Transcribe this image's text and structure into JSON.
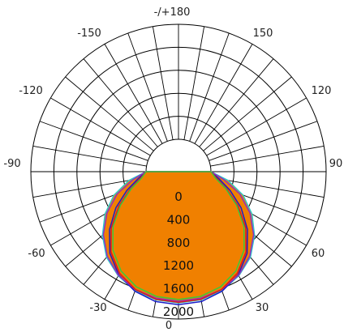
{
  "chart_data": {
    "type": "polar",
    "title": "",
    "r_max": 2000,
    "r_ticks": [
      0,
      400,
      800,
      1200,
      1600,
      2000
    ],
    "r_tick_labels": [
      "0",
      "400",
      "800",
      "1200",
      "1600",
      "2000"
    ],
    "grid_circle_values": [
      0,
      400,
      800,
      1200,
      1600,
      2000
    ],
    "spoke_step_deg": 10,
    "angle_labels": [
      {
        "deg": 180,
        "text": "-/+180"
      },
      {
        "deg": -150,
        "text": "-150"
      },
      {
        "deg": 150,
        "text": "150"
      },
      {
        "deg": -120,
        "text": "-120"
      },
      {
        "deg": 120,
        "text": "120"
      },
      {
        "deg": -90,
        "text": "-90"
      },
      {
        "deg": 90,
        "text": "90"
      },
      {
        "deg": -60,
        "text": "-60"
      },
      {
        "deg": 60,
        "text": "60"
      },
      {
        "deg": -30,
        "text": "-30"
      },
      {
        "deg": 30,
        "text": "30"
      },
      {
        "deg": 0,
        "text": "0"
      }
    ],
    "series": [
      {
        "color": "#f08000",
        "fill": "#f08000",
        "filled": true,
        "points": [
          [
            -90,
            0
          ],
          [
            -80,
            300
          ],
          [
            -70,
            620
          ],
          [
            -60,
            900
          ],
          [
            -50,
            1150
          ],
          [
            -40,
            1370
          ],
          [
            -30,
            1520
          ],
          [
            -20,
            1630
          ],
          [
            -10,
            1690
          ],
          [
            0,
            1710
          ],
          [
            10,
            1690
          ],
          [
            20,
            1630
          ],
          [
            30,
            1520
          ],
          [
            40,
            1370
          ],
          [
            50,
            1150
          ],
          [
            60,
            900
          ],
          [
            70,
            620
          ],
          [
            80,
            300
          ],
          [
            90,
            0
          ]
        ]
      },
      {
        "color": "#2ec8c8",
        "filled": false,
        "points": [
          [
            -90,
            0
          ],
          [
            -80,
            310
          ],
          [
            -70,
            630
          ],
          [
            -60,
            910
          ],
          [
            -50,
            1160
          ],
          [
            -40,
            1380
          ],
          [
            -30,
            1530
          ],
          [
            -20,
            1640
          ],
          [
            -10,
            1700
          ],
          [
            0,
            1720
          ],
          [
            10,
            1700
          ],
          [
            20,
            1640
          ],
          [
            30,
            1530
          ],
          [
            40,
            1380
          ],
          [
            50,
            1160
          ],
          [
            60,
            910
          ],
          [
            70,
            630
          ],
          [
            80,
            310
          ],
          [
            90,
            0
          ]
        ]
      },
      {
        "color": "#1c1cc8",
        "filled": false,
        "points": [
          [
            -90,
            0
          ],
          [
            -80,
            150
          ],
          [
            -70,
            390
          ],
          [
            -60,
            690
          ],
          [
            -50,
            1000
          ],
          [
            -40,
            1290
          ],
          [
            -30,
            1510
          ],
          [
            -20,
            1650
          ],
          [
            -10,
            1730
          ],
          [
            0,
            1750
          ],
          [
            10,
            1730
          ],
          [
            20,
            1650
          ],
          [
            30,
            1510
          ],
          [
            40,
            1290
          ],
          [
            50,
            1000
          ],
          [
            60,
            690
          ],
          [
            70,
            390
          ],
          [
            80,
            150
          ],
          [
            90,
            0
          ]
        ]
      },
      {
        "color": "#9030c0",
        "filled": false,
        "points": [
          [
            -90,
            0
          ],
          [
            -80,
            240
          ],
          [
            -70,
            570
          ],
          [
            -60,
            870
          ],
          [
            -50,
            1140
          ],
          [
            -40,
            1360
          ],
          [
            -30,
            1520
          ],
          [
            -20,
            1620
          ],
          [
            -10,
            1670
          ],
          [
            0,
            1690
          ],
          [
            10,
            1670
          ],
          [
            20,
            1620
          ],
          [
            30,
            1520
          ],
          [
            40,
            1360
          ],
          [
            50,
            1140
          ],
          [
            60,
            870
          ],
          [
            70,
            570
          ],
          [
            80,
            240
          ],
          [
            90,
            0
          ]
        ]
      },
      {
        "color": "#e01818",
        "filled": false,
        "points": [
          [
            -90,
            0
          ],
          [
            -80,
            110
          ],
          [
            -70,
            330
          ],
          [
            -60,
            630
          ],
          [
            -50,
            960
          ],
          [
            -40,
            1260
          ],
          [
            -30,
            1480
          ],
          [
            -20,
            1620
          ],
          [
            -10,
            1690
          ],
          [
            0,
            1710
          ],
          [
            10,
            1690
          ],
          [
            20,
            1620
          ],
          [
            30,
            1480
          ],
          [
            40,
            1260
          ],
          [
            50,
            960
          ],
          [
            60,
            630
          ],
          [
            70,
            330
          ],
          [
            80,
            110
          ],
          [
            90,
            0
          ]
        ]
      },
      {
        "color": "#3cc83c",
        "filled": false,
        "points": [
          [
            -90,
            0
          ],
          [
            -80,
            90
          ],
          [
            -70,
            310
          ],
          [
            -60,
            600
          ],
          [
            -50,
            920
          ],
          [
            -40,
            1210
          ],
          [
            -30,
            1430
          ],
          [
            -20,
            1570
          ],
          [
            -10,
            1640
          ],
          [
            0,
            1660
          ],
          [
            10,
            1640
          ],
          [
            20,
            1570
          ],
          [
            30,
            1430
          ],
          [
            40,
            1210
          ],
          [
            50,
            920
          ],
          [
            60,
            600
          ],
          [
            70,
            310
          ],
          [
            80,
            90
          ],
          [
            90,
            0
          ]
        ]
      }
    ]
  }
}
